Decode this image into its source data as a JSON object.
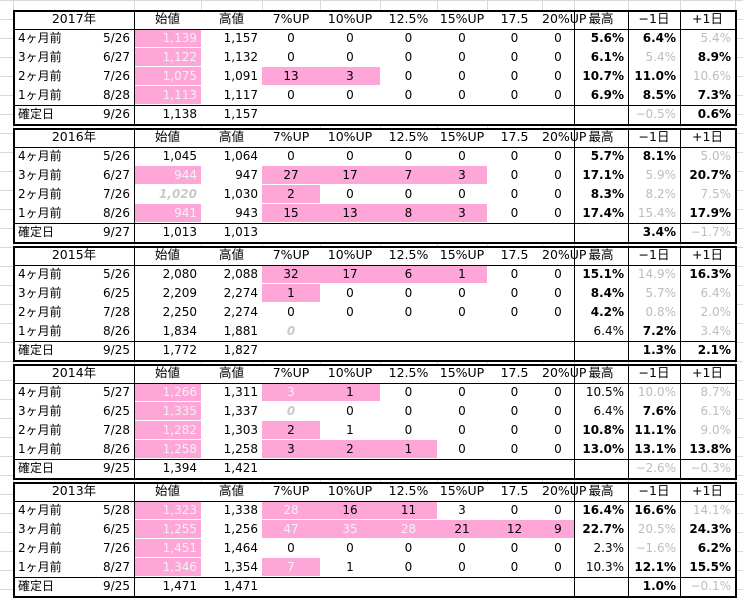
{
  "column_headers": {
    "start": "始値",
    "high": "高値",
    "p7": "7%UP",
    "p10": "10%UP",
    "p125": "12.5%",
    "p15": "15%UP",
    "p175": "17.5",
    "p20": "20%UP",
    "max": "最高",
    "minus1": "−1日",
    "plus1": "+1日"
  },
  "blocks": [
    {
      "year": "2017年",
      "rows": [
        {
          "label": "4ヶ月前",
          "date": "5/26",
          "start": "1,139",
          "high": "1,157",
          "p7": "0",
          "p10": "0",
          "p125": "0",
          "p15": "0",
          "p175": "0",
          "p20": "0",
          "max": "5.6%",
          "m1": "6.4%",
          "p1": "5.4%"
        },
        {
          "label": "3ヶ月前",
          "date": "6/27",
          "start": "1,122",
          "high": "1,132",
          "p7": "0",
          "p10": "0",
          "p125": "0",
          "p15": "0",
          "p175": "0",
          "p20": "0",
          "max": "6.1%",
          "m1": "5.4%",
          "p1": "8.9%"
        },
        {
          "label": "2ヶ月前",
          "date": "7/26",
          "start": "1,075",
          "high": "1,091",
          "p7": "13",
          "p10": "3",
          "p125": "0",
          "p15": "0",
          "p175": "0",
          "p20": "0",
          "max": "10.7%",
          "m1": "11.0%",
          "p1": "10.6%"
        },
        {
          "label": "1ヶ月前",
          "date": "8/28",
          "start": "1,113",
          "high": "1,117",
          "p7": "0",
          "p10": "0",
          "p125": "0",
          "p15": "0",
          "p175": "0",
          "p20": "0",
          "max": "6.9%",
          "m1": "8.5%",
          "p1": "7.3%"
        },
        {
          "label": "確定日",
          "date": "9/26",
          "start": "1,138",
          "high": "1,157",
          "m1": "−0.5%",
          "p1": "0.6%"
        }
      ]
    },
    {
      "year": "2016年",
      "rows": [
        {
          "label": "4ヶ月前",
          "date": "5/26",
          "start": "1,045",
          "high": "1,064",
          "p7": "0",
          "p10": "0",
          "p125": "0",
          "p15": "0",
          "p175": "0",
          "p20": "0",
          "max": "5.7%",
          "m1": "8.1%",
          "p1": "5.0%"
        },
        {
          "label": "3ヶ月前",
          "date": "6/27",
          "start": "944",
          "high": "947",
          "p7": "27",
          "p10": "17",
          "p125": "7",
          "p15": "3",
          "p175": "0",
          "p20": "0",
          "max": "17.1%",
          "m1": "5.9%",
          "p1": "20.7%"
        },
        {
          "label": "2ヶ月前",
          "date": "7/26",
          "start": "1,020",
          "high": "1,030",
          "p7": "2",
          "p10": "0",
          "p125": "0",
          "p15": "0",
          "p175": "0",
          "p20": "0",
          "max": "8.3%",
          "m1": "8.2%",
          "p1": "7.5%"
        },
        {
          "label": "1ヶ月前",
          "date": "8/26",
          "start": "941",
          "high": "943",
          "p7": "15",
          "p10": "13",
          "p125": "8",
          "p15": "3",
          "p175": "0",
          "p20": "0",
          "max": "17.4%",
          "m1": "15.4%",
          "p1": "17.9%"
        },
        {
          "label": "確定日",
          "date": "9/27",
          "start": "1,013",
          "high": "1,013",
          "m1": "3.4%",
          "p1": "−1.7%"
        }
      ]
    },
    {
      "year": "2015年",
      "rows": [
        {
          "label": "4ヶ月前",
          "date": "5/26",
          "start": "2,080",
          "high": "2,088",
          "p7": "32",
          "p10": "17",
          "p125": "6",
          "p15": "1",
          "p175": "0",
          "p20": "0",
          "max": "15.1%",
          "m1": "14.9%",
          "p1": "16.3%"
        },
        {
          "label": "3ヶ月前",
          "date": "6/25",
          "start": "2,209",
          "high": "2,274",
          "p7": "1",
          "p10": "0",
          "p125": "0",
          "p15": "0",
          "p175": "0",
          "p20": "0",
          "max": "8.4%",
          "m1": "5.7%",
          "p1": "6.4%"
        },
        {
          "label": "2ヶ月前",
          "date": "7/28",
          "start": "2,250",
          "high": "2,274",
          "p7": "0",
          "p10": "0",
          "p125": "0",
          "p15": "0",
          "p175": "0",
          "p20": "0",
          "max": "4.2%",
          "m1": "0.8%",
          "p1": "2.0%"
        },
        {
          "label": "1ヶ月前",
          "date": "8/26",
          "start": "1,834",
          "high": "1,881",
          "p7": "0",
          "p10": "",
          "p125": "",
          "p15": "",
          "p175": "",
          "p20": "",
          "max": "6.4%",
          "m1": "7.2%",
          "p1": "3.4%"
        },
        {
          "label": "確定日",
          "date": "9/25",
          "start": "1,772",
          "high": "1,827",
          "m1": "1.3%",
          "p1": "2.1%"
        }
      ]
    },
    {
      "year": "2014年",
      "rows": [
        {
          "label": "4ヶ月前",
          "date": "5/27",
          "start": "1,266",
          "high": "1,311",
          "p7": "3",
          "p10": "1",
          "p125": "0",
          "p15": "0",
          "p175": "0",
          "p20": "0",
          "max": "10.5%",
          "m1": "10.0%",
          "p1": "8.7%"
        },
        {
          "label": "3ヶ月前",
          "date": "6/25",
          "start": "1,335",
          "high": "1,337",
          "p7": "0",
          "p10": "0",
          "p125": "0",
          "p15": "0",
          "p175": "0",
          "p20": "0",
          "max": "6.4%",
          "m1": "7.6%",
          "p1": "6.1%"
        },
        {
          "label": "2ヶ月前",
          "date": "7/28",
          "start": "1,282",
          "high": "1,303",
          "p7": "2",
          "p10": "1",
          "p125": "0",
          "p15": "0",
          "p175": "0",
          "p20": "0",
          "max": "10.8%",
          "m1": "11.1%",
          "p1": "9.0%"
        },
        {
          "label": "1ヶ月前",
          "date": "8/26",
          "start": "1,258",
          "high": "1,258",
          "p7": "3",
          "p10": "2",
          "p125": "1",
          "p15": "0",
          "p175": "0",
          "p20": "0",
          "max": "13.0%",
          "m1": "13.1%",
          "p1": "13.8%"
        },
        {
          "label": "確定日",
          "date": "9/25",
          "start": "1,394",
          "high": "1,421",
          "m1": "−2.6%",
          "p1": "−0.3%"
        }
      ]
    },
    {
      "year": "2013年",
      "rows": [
        {
          "label": "4ヶ月前",
          "date": "5/28",
          "start": "1,323",
          "high": "1,338",
          "p7": "28",
          "p10": "16",
          "p125": "11",
          "p15": "3",
          "p175": "0",
          "p20": "0",
          "max": "16.4%",
          "m1": "16.6%",
          "p1": "14.1%"
        },
        {
          "label": "3ヶ月前",
          "date": "6/25",
          "start": "1,255",
          "high": "1,256",
          "p7": "47",
          "p10": "35",
          "p125": "28",
          "p15": "21",
          "p175": "12",
          "p20": "9",
          "max": "22.7%",
          "m1": "20.5%",
          "p1": "24.3%"
        },
        {
          "label": "2ヶ月前",
          "date": "7/26",
          "start": "1,451",
          "high": "1,464",
          "p7": "0",
          "p10": "0",
          "p125": "0",
          "p15": "0",
          "p175": "0",
          "p20": "0",
          "max": "2.3%",
          "m1": "−1.6%",
          "p1": "6.2%"
        },
        {
          "label": "1ヶ月前",
          "date": "8/27",
          "start": "1,346",
          "high": "1,354",
          "p7": "7",
          "p10": "1",
          "p125": "0",
          "p15": "0",
          "p175": "0",
          "p20": "0",
          "max": "10.3%",
          "m1": "12.1%",
          "p1": "15.5%"
        },
        {
          "label": "確定日",
          "date": "9/25",
          "start": "1,471",
          "high": "1,471",
          "m1": "1.0%",
          "p1": "−0.1%"
        }
      ]
    }
  ]
}
